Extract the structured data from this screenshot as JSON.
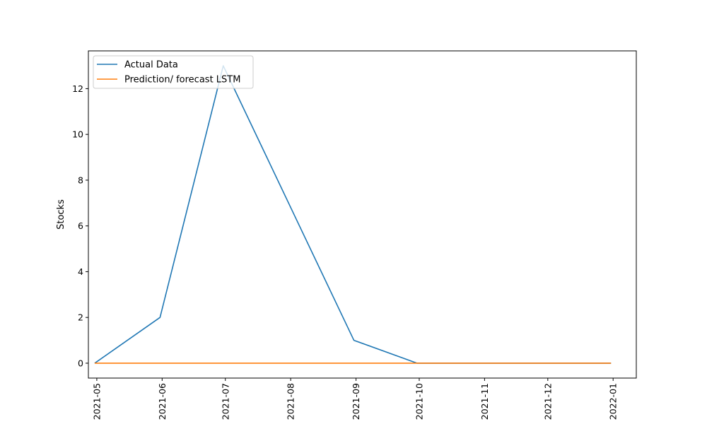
{
  "chart_data": {
    "type": "line",
    "title": "",
    "xlabel": "",
    "ylabel": "Stocks",
    "x_ticks": [
      "2021-05",
      "2021-06",
      "2021-07",
      "2021-08",
      "2021-09",
      "2021-10",
      "2021-11",
      "2021-12",
      "2022-01"
    ],
    "y_ticks": [
      "0",
      "2",
      "4",
      "6",
      "8",
      "10",
      "12"
    ],
    "xlim": [
      "2021-04-27",
      "2022-01-12"
    ],
    "ylim": [
      -0.65,
      13.65
    ],
    "grid": false,
    "legend_position": "top-left",
    "series": [
      {
        "name": "Actual Data",
        "color": "#1f77b4",
        "x": [
          "2021-04-30",
          "2021-05-31",
          "2021-06-30",
          "2021-07-31",
          "2021-08-31",
          "2021-09-30",
          "2021-10-31",
          "2021-11-30",
          "2021-12-31"
        ],
        "y": [
          0,
          2,
          13,
          7,
          1,
          0,
          0,
          0,
          0
        ]
      },
      {
        "name": "Prediction/ forecast LSTM",
        "color": "#ff7f0e",
        "x": [
          "2021-04-30",
          "2021-05-31",
          "2021-06-30",
          "2021-07-31",
          "2021-08-31",
          "2021-09-30",
          "2021-10-31",
          "2021-11-30",
          "2021-12-31"
        ],
        "y": [
          0,
          0,
          0,
          0,
          0,
          0,
          0,
          0,
          0
        ]
      }
    ]
  }
}
